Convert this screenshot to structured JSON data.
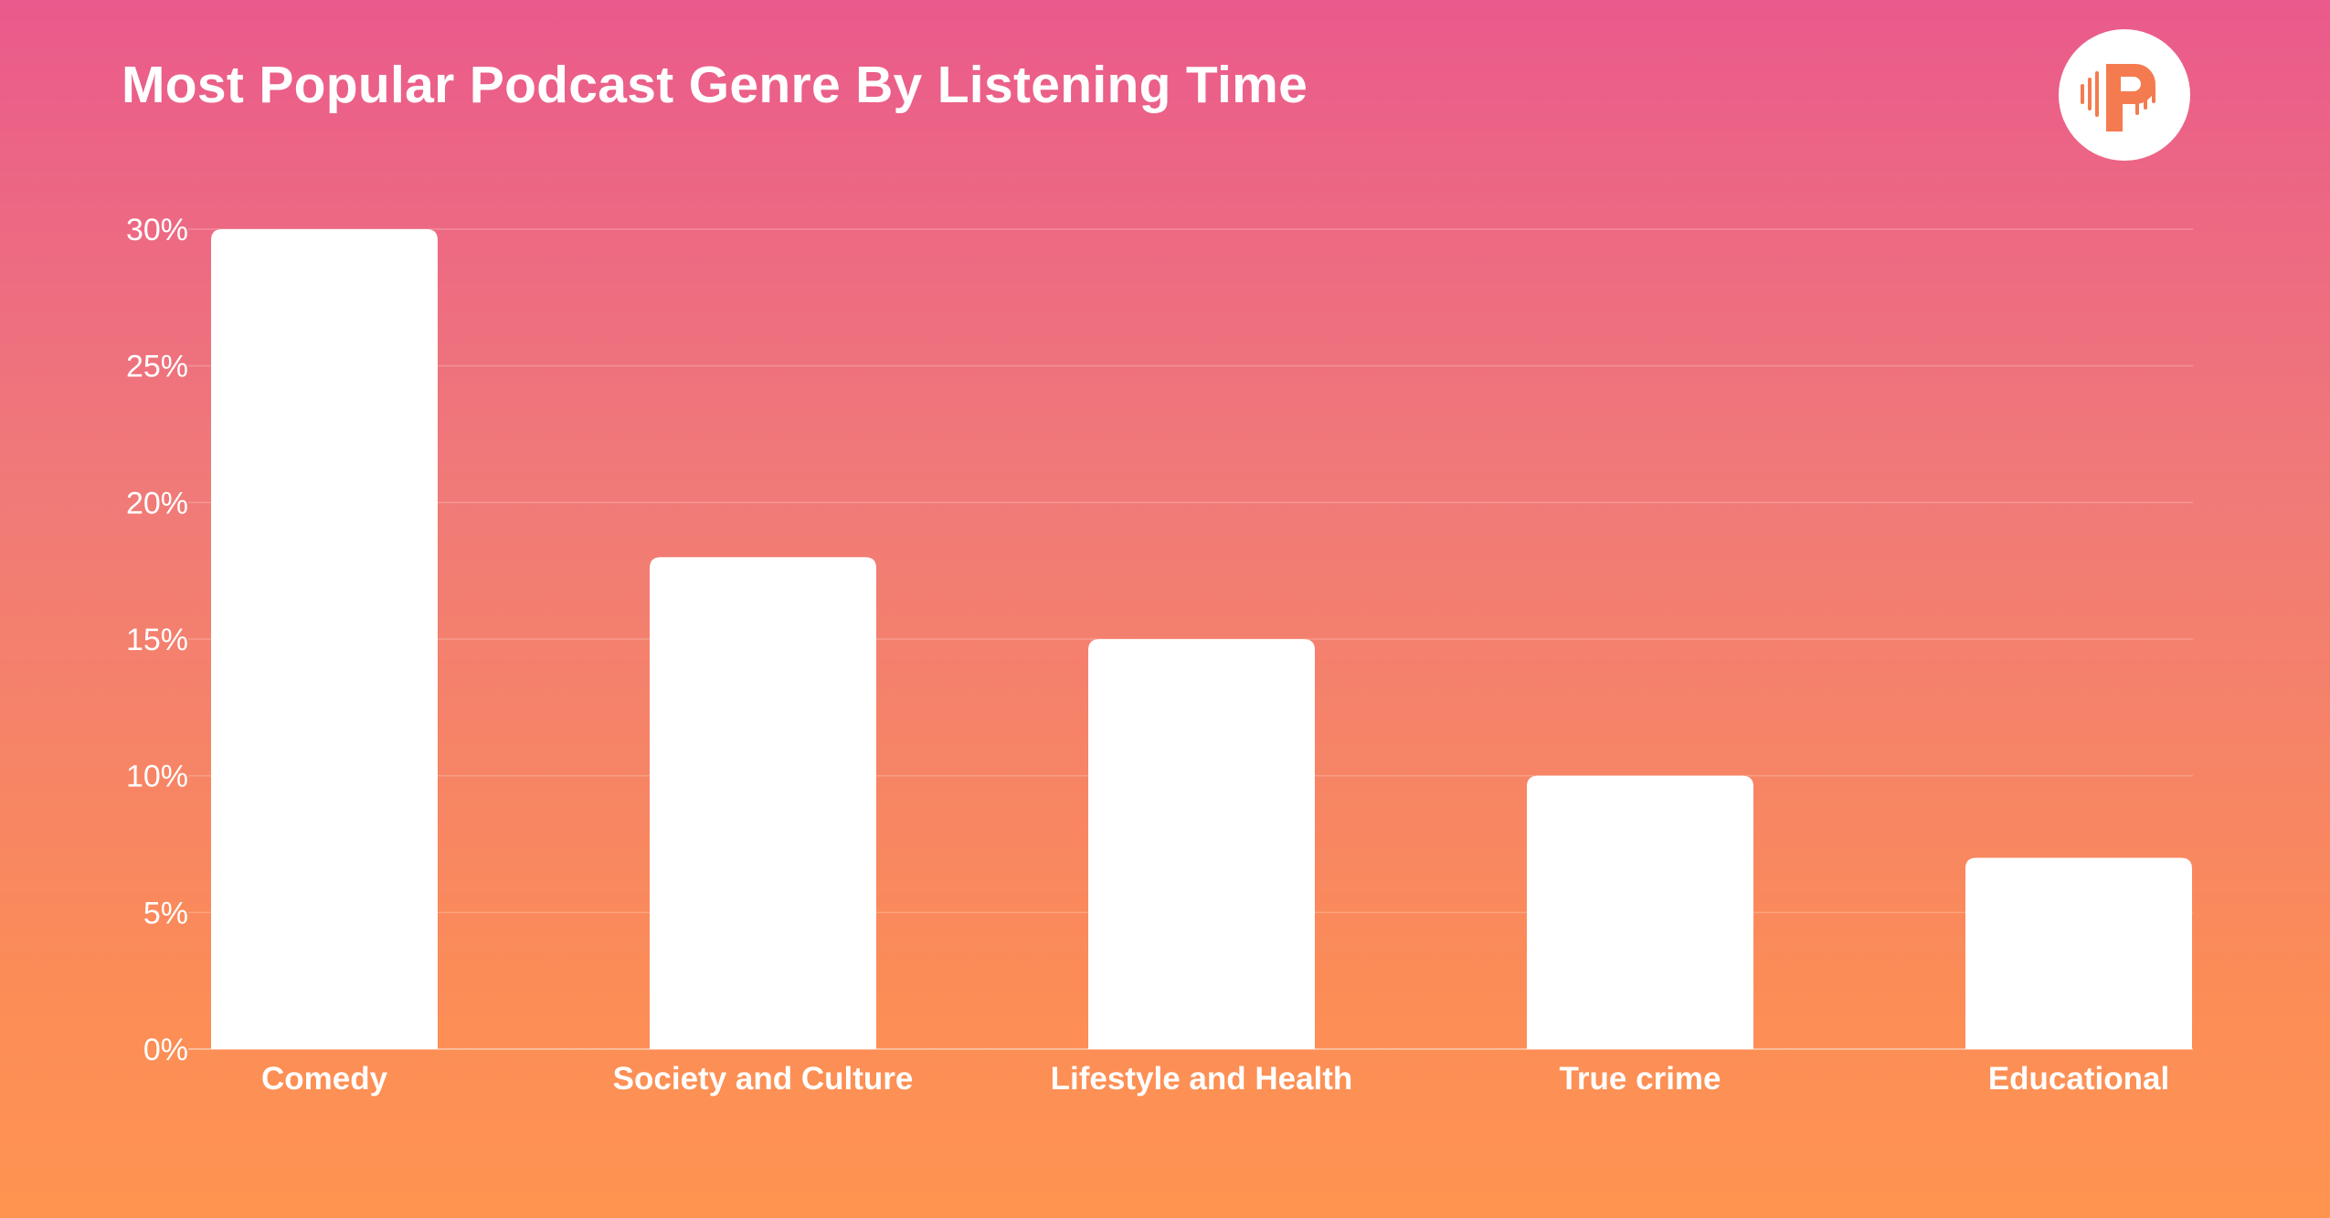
{
  "colors": {
    "bar": "#ffffff",
    "gridline": "#ffffff",
    "logo_accent": "#f47b4f"
  },
  "logo": {
    "icon": "podcast-p-icon"
  },
  "chart_data": {
    "type": "bar",
    "title": "Most Popular Podcast Genre By Listening Time",
    "xlabel": "",
    "ylabel": "",
    "categories": [
      "Comedy",
      "Society and Culture",
      "Lifestyle and Health",
      "True crime",
      "Educational"
    ],
    "values": [
      30,
      18,
      15,
      10,
      7
    ],
    "ylim": [
      0,
      30
    ],
    "yticks": [
      0,
      5,
      10,
      15,
      20,
      25,
      30
    ],
    "ytick_labels": [
      "0%",
      "5%",
      "10%",
      "15%",
      "20%",
      "25%",
      "30%"
    ],
    "grid": true,
    "legend": "none"
  }
}
